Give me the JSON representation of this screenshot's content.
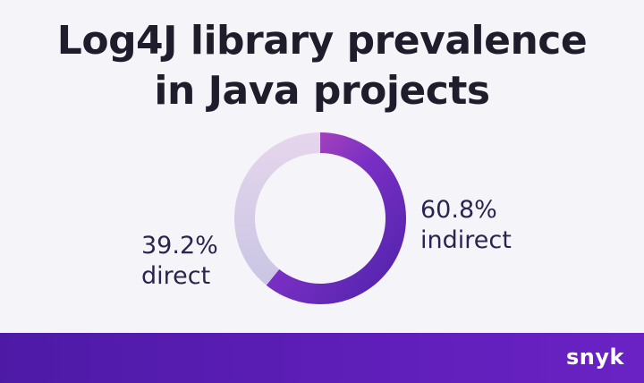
{
  "title_lines": [
    "Log4J library prevalence",
    "in Java projects"
  ],
  "chart_data": {
    "type": "pie",
    "variant": "donut",
    "slices": [
      {
        "label": "indirect",
        "value": 60.8,
        "display": "60.8%",
        "color": "#6a22c4"
      },
      {
        "label": "direct",
        "value": 39.2,
        "display": "39.2%",
        "color": "#d3cbe8"
      }
    ],
    "legend": "none"
  },
  "brand": "snyk",
  "colors": {
    "background": "#f5f5f9",
    "footer": "#5e1eb8",
    "text": "#1f1d2b"
  }
}
